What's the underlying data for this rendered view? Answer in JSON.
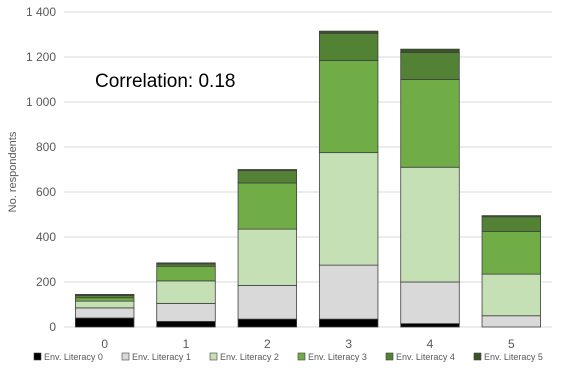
{
  "chart_data": {
    "type": "bar",
    "stacked": true,
    "categories": [
      "0",
      "1",
      "2",
      "3",
      "4",
      "5"
    ],
    "series": [
      {
        "name": "Env. Literacy 0",
        "color": "#000000",
        "values": [
          40,
          25,
          35,
          35,
          15,
          0
        ]
      },
      {
        "name": "Env. Literacy 1",
        "color": "#d9d9d9",
        "values": [
          45,
          80,
          150,
          240,
          185,
          50
        ]
      },
      {
        "name": "Env. Literacy 2",
        "color": "#c5e0b4",
        "values": [
          30,
          100,
          250,
          500,
          510,
          185
        ]
      },
      {
        "name": "Env. Literacy 3",
        "color": "#70ad47",
        "values": [
          15,
          65,
          205,
          410,
          390,
          190
        ]
      },
      {
        "name": "Env. Literacy 4",
        "color": "#548235",
        "values": [
          10,
          10,
          55,
          120,
          120,
          65
        ]
      },
      {
        "name": "Env. Literacy 5",
        "color": "#375623",
        "values": [
          5,
          5,
          5,
          10,
          15,
          5
        ]
      }
    ],
    "ylabel": "No. respondents",
    "xlabel": "",
    "ylim": [
      0,
      1400
    ],
    "yticks": [
      0,
      200,
      400,
      600,
      800,
      1000,
      1200,
      1400
    ],
    "ytick_labels": [
      "0",
      "200",
      "400",
      "600",
      "800",
      "1 000",
      "1 200",
      "1 400"
    ],
    "annotation": "Correlation: 0.18",
    "grid": true,
    "legend_position": "bottom"
  }
}
